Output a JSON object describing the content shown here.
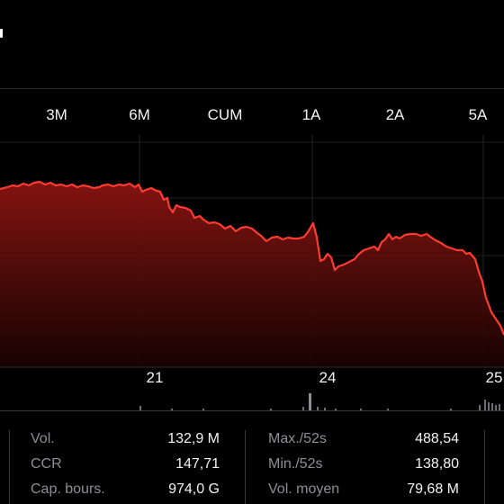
{
  "range_tabs": [
    "3M",
    "6M",
    "CUM",
    "1A",
    "2A",
    "5A"
  ],
  "date_labels": [
    "21",
    "24",
    "25"
  ],
  "chart_colors": {
    "line": "#ff3b30",
    "fill": "#7a0f0d",
    "grid": "#262626"
  },
  "stats": {
    "left": [
      {
        "label": "Vol.",
        "value": "132,9 M"
      },
      {
        "label": "CCR",
        "value": "147,71"
      },
      {
        "label": "Cap. bours.",
        "value": "974,0 G"
      }
    ],
    "right": [
      {
        "label": "Max./52s",
        "value": "488,54"
      },
      {
        "label": "Min./52s",
        "value": "138,80"
      },
      {
        "label": "Vol. moyen",
        "value": "79,68 M"
      }
    ]
  }
}
